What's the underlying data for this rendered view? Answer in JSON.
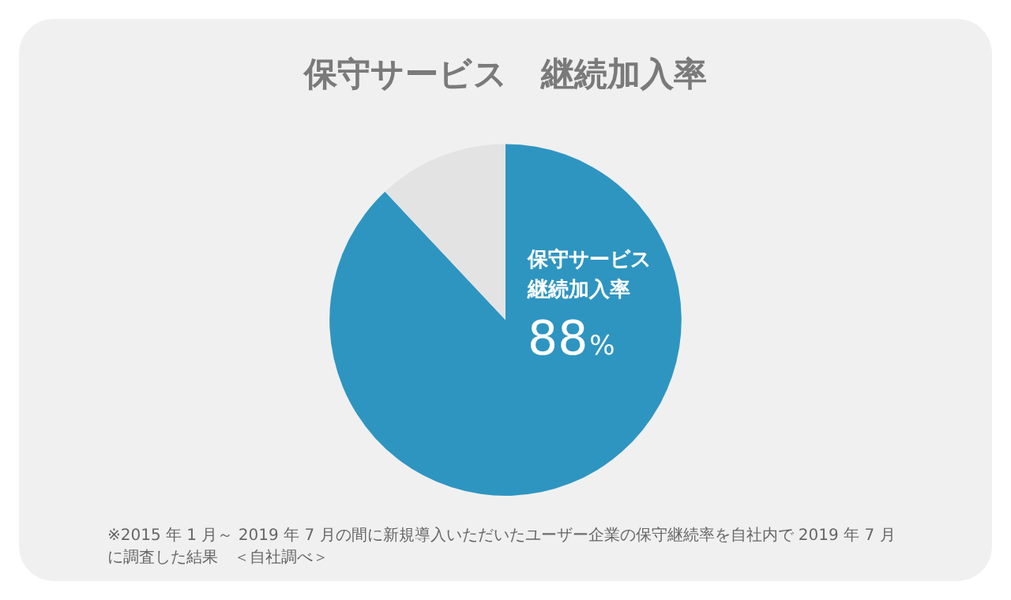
{
  "chart_data": {
    "type": "pie",
    "title": "保守サービス　継続加入率",
    "categories": [
      "保守サービス継続加入率",
      null
    ],
    "values": [
      88,
      12
    ],
    "colors": [
      "#2e95c1",
      "#e3e3e3"
    ],
    "value_labels": [
      "88%",
      null
    ],
    "legend": false,
    "annotations": [
      "※2015 年 1 月～ 2019 年 7 月の間に新規導入いただいたユーザー企業の保守継続率を自社内で 2019 年 7 月に調査した結果　＜自社調べ＞"
    ]
  }
}
